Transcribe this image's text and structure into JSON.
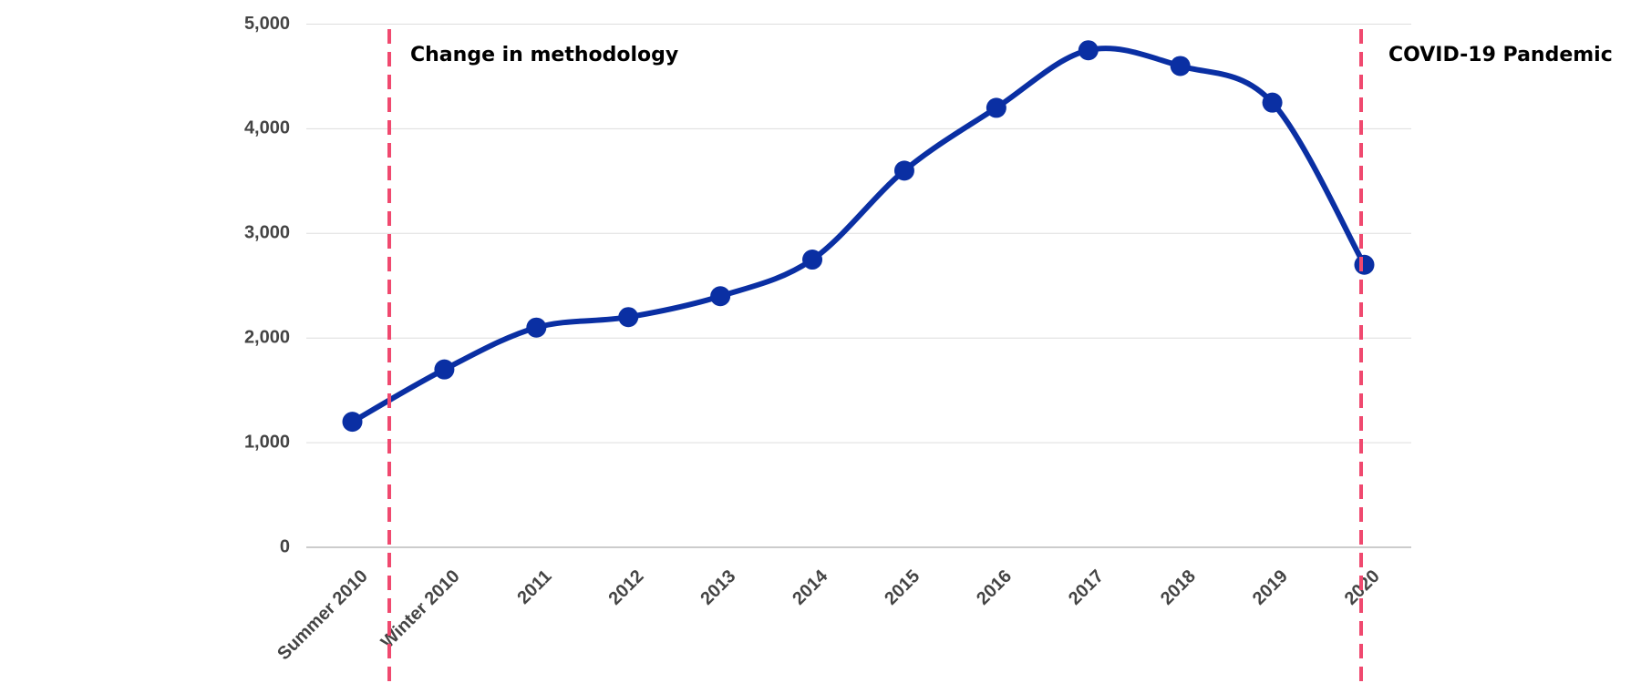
{
  "chart_data": {
    "type": "line",
    "categories": [
      "Summer 2010",
      "Winter 2010",
      "2011",
      "2012",
      "2013",
      "2014",
      "2015",
      "2016",
      "2017",
      "2018",
      "2019",
      "2020"
    ],
    "series": [
      {
        "color": "#0a2fa3",
        "values": [
          1200,
          1700,
          2100,
          2200,
          2400,
          2750,
          3600,
          4200,
          4750,
          4600,
          4250,
          2700
        ]
      }
    ],
    "ylim": [
      0,
      5000
    ],
    "yticks": [
      0,
      {
        "value": 1000,
        "label": "1,000"
      },
      {
        "value": 2000,
        "label": "2,000"
      },
      {
        "value": 3000,
        "label": "3,000"
      },
      {
        "value": 4000,
        "label": "4,000"
      },
      {
        "value": 5000,
        "label": "5,000"
      }
    ],
    "grid": true,
    "annotations": [
      "Change in methodology",
      "COVID-19 Pandemic"
    ],
    "annotation_color": "#f0496f"
  }
}
